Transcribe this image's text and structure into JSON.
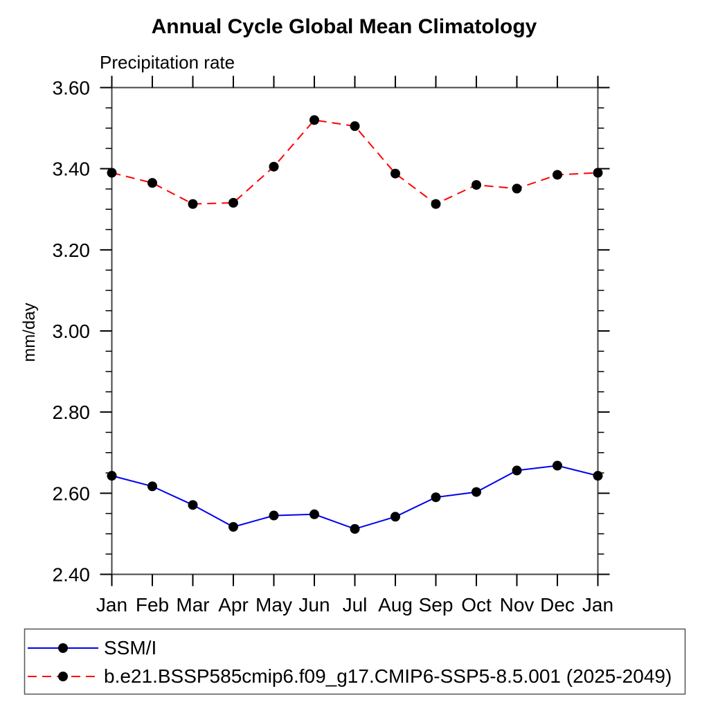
{
  "chart_data": {
    "type": "line",
    "title": "Annual Cycle Global Mean Climatology",
    "subtitle": "Precipitation rate",
    "ylabel": "mm/day",
    "x_tick_labels": [
      "Jan",
      "Feb",
      "Mar",
      "Apr",
      "May",
      "Jun",
      "Jul",
      "Aug",
      "Sep",
      "Oct",
      "Nov",
      "Dec",
      "Jan"
    ],
    "ylim": [
      2.4,
      3.6
    ],
    "y_major_step": 0.2,
    "y_minor_step": 0.05,
    "y_major_tick_labels": [
      "2.40",
      "2.60",
      "2.80",
      "3.00",
      "3.20",
      "3.40",
      "3.60"
    ],
    "grid": false,
    "legend_position": "bottom-left",
    "marker_color": "#000000",
    "frame_color": "#444444",
    "series": [
      {
        "name": "SSM/I",
        "color": "#0000ee",
        "line_style": "solid",
        "marker": "filled-circle",
        "values": [
          2.643,
          2.617,
          2.571,
          2.517,
          2.545,
          2.548,
          2.512,
          2.542,
          2.59,
          2.603,
          2.656,
          2.668,
          2.643
        ]
      },
      {
        "name": "b.e21.BSSP585cmip6.f09_g17.CMIP6-SSP5-8.5.001 (2025-2049)",
        "color": "#ff0000",
        "line_style": "dashed",
        "marker": "filled-circle",
        "values": [
          3.39,
          3.365,
          3.313,
          3.316,
          3.405,
          3.52,
          3.505,
          3.388,
          3.313,
          3.36,
          3.351,
          3.385,
          3.39
        ]
      }
    ]
  }
}
